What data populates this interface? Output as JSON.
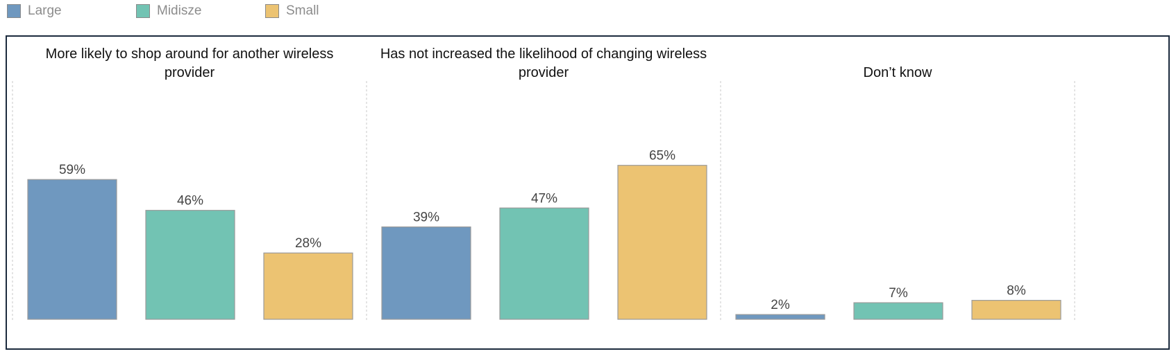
{
  "legend": [
    {
      "label": "Large",
      "color": "#6f98bf"
    },
    {
      "label": "Midisze",
      "color": "#72c3b3"
    },
    {
      "label": "Small",
      "color": "#ecc372"
    }
  ],
  "chart_data": {
    "type": "bar",
    "title": "",
    "xlabel": "",
    "ylabel": "",
    "ylim": [
      0,
      100
    ],
    "unit": "%",
    "grid": false,
    "legend_position": "top-left",
    "panels": [
      {
        "title_lines": [
          "More likely to shop around for another wireless",
          "provider"
        ],
        "series": [
          {
            "name": "Large",
            "value": 59,
            "label": "59%"
          },
          {
            "name": "Midisze",
            "value": 46,
            "label": "46%"
          },
          {
            "name": "Small",
            "value": 28,
            "label": "28%"
          }
        ]
      },
      {
        "title_lines": [
          "Has not increased the likelihood of changing wireless",
          "provider"
        ],
        "series": [
          {
            "name": "Large",
            "value": 39,
            "label": "39%"
          },
          {
            "name": "Midisze",
            "value": 47,
            "label": "47%"
          },
          {
            "name": "Small",
            "value": 65,
            "label": "65%"
          }
        ]
      },
      {
        "title_lines": [
          "",
          "Don’t know"
        ],
        "series": [
          {
            "name": "Large",
            "value": 2,
            "label": "2%"
          },
          {
            "name": "Midisze",
            "value": 7,
            "label": "7%"
          },
          {
            "name": "Small",
            "value": 8,
            "label": "8%"
          }
        ]
      }
    ]
  }
}
